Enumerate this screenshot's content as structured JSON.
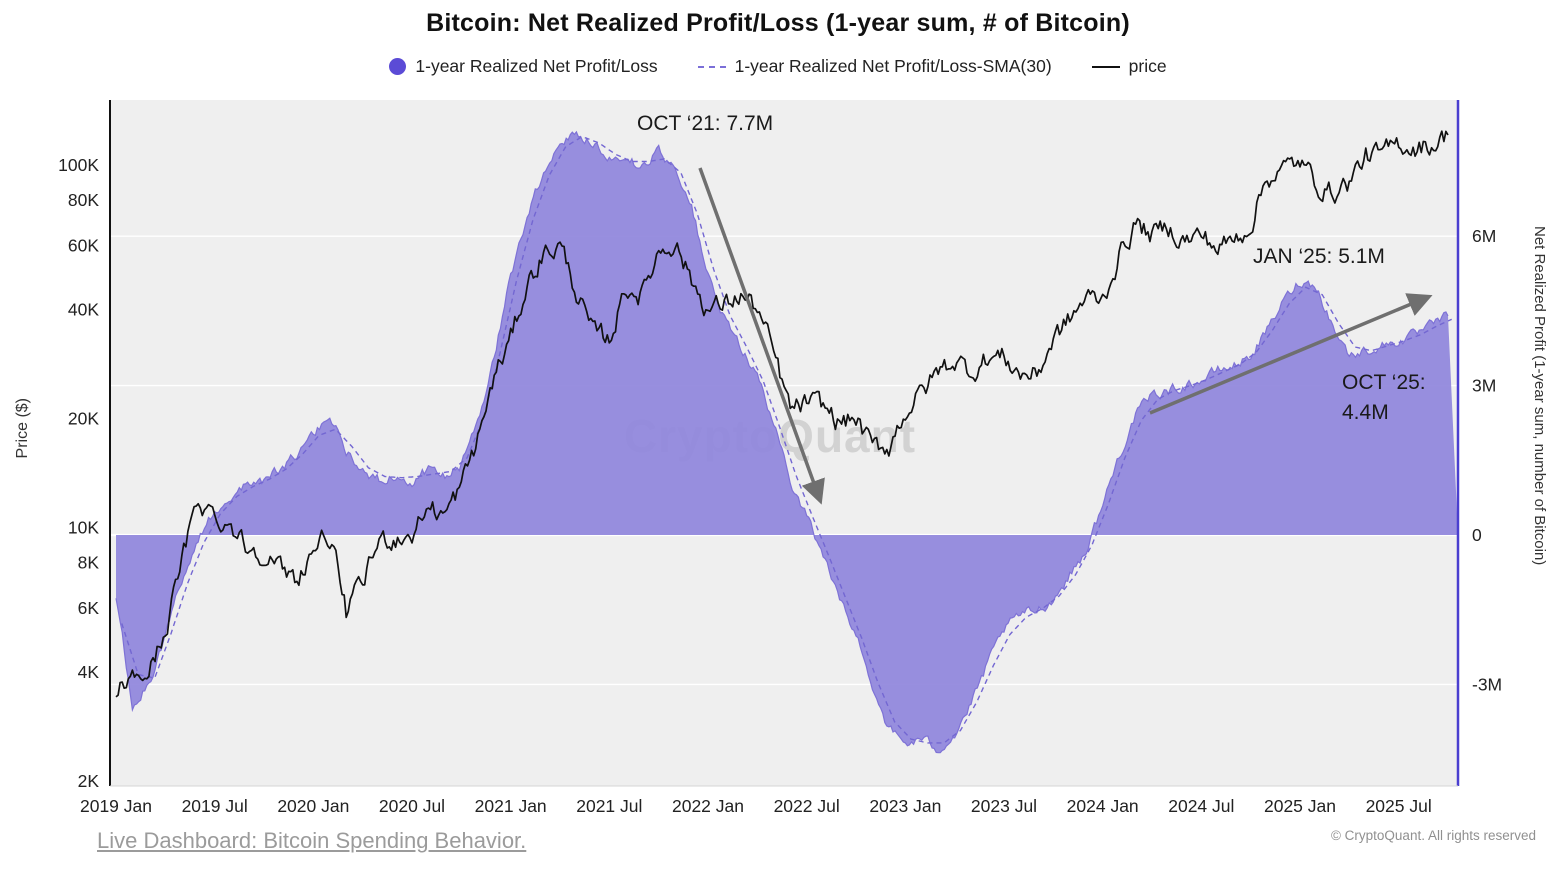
{
  "title": "Bitcoin: Net Realized Profit/Loss (1-year sum, # of Bitcoin)",
  "legend": {
    "items": [
      {
        "label": "1-year Realized Net Profit/Loss",
        "marker": "purple-dot"
      },
      {
        "label": "1-year Realized Net Profit/Loss-SMA(30)",
        "marker": "purple-dashed-line"
      },
      {
        "label": "price",
        "marker": "black-line"
      }
    ]
  },
  "annotations": {
    "oct21": "OCT ‘21: 7.7M",
    "jan25": "JAN ‘25: 5.1M",
    "oct25": "OCT ‘25: 4.4M"
  },
  "watermark": "CryptoQuant",
  "footer": {
    "link_label": "Live Dashboard: Bitcoin Spending Behavior.",
    "copyright": "© CryptoQuant. All rights reserved"
  },
  "colors": {
    "area": "#8f86dc",
    "area_edge": "#7e72d6",
    "sma": "#7367d2",
    "price": "#111111",
    "legend_dot": "#5b4bd6",
    "right_axis_spine": "#4a3fd0",
    "plot_bg": "#efefef",
    "annotation_arrow": "#6f6f6f"
  },
  "chart_data": {
    "type": "area",
    "title": "Bitcoin: Net Realized Profit/Loss (1-year sum, # of Bitcoin)",
    "x_start": "2019-01",
    "x_end": "2025-10",
    "x_interval": "monthly",
    "x_tick_labels": [
      "2019 Jan",
      "2019 Jul",
      "2020 Jan",
      "2020 Jul",
      "2021 Jan",
      "2021 Jul",
      "2022 Jan",
      "2022 Jul",
      "2023 Jan",
      "2023 Jul",
      "2024 Jan",
      "2024 Jul",
      "2025 Jan",
      "2025 Jul"
    ],
    "left_axis": {
      "label": "Price ($)",
      "scale": "log",
      "tick_labels": [
        "100K",
        "80K",
        "60K",
        "40K",
        "20K",
        "10K",
        "8K",
        "6K",
        "4K",
        "2K"
      ],
      "tick_values": [
        100000,
        80000,
        60000,
        40000,
        20000,
        10000,
        8000,
        6000,
        4000,
        2000
      ]
    },
    "right_axis": {
      "label": "Net Realized Profit (1-year sum, number of Bitcoin)",
      "scale": "linear",
      "unit": "million BTC",
      "tick_labels": [
        "6M",
        "3M",
        "0",
        "-3M"
      ],
      "tick_values": [
        6,
        3,
        0,
        -3
      ]
    },
    "series": [
      {
        "name": "1-year Realized Net Profit/Loss",
        "type": "area",
        "axis": "right",
        "unit": "million BTC",
        "values": [
          -1.2,
          -3.5,
          -3.0,
          -2.0,
          -0.9,
          -0.1,
          0.5,
          0.8,
          1.0,
          1.1,
          1.3,
          1.6,
          2.0,
          2.4,
          1.7,
          1.3,
          1.1,
          1.2,
          1.1,
          1.3,
          1.2,
          1.4,
          2.2,
          3.6,
          5.2,
          6.4,
          7.3,
          7.9,
          8.1,
          7.9,
          7.6,
          7.5,
          7.4,
          7.7,
          7.4,
          6.6,
          5.2,
          4.3,
          3.8,
          3.2,
          2.2,
          1.1,
          0.4,
          -0.4,
          -1.3,
          -2.0,
          -3.0,
          -3.9,
          -4.2,
          -4.1,
          -4.3,
          -4.0,
          -3.4,
          -2.6,
          -1.9,
          -1.6,
          -1.5,
          -1.3,
          -0.8,
          -0.3,
          0.6,
          1.6,
          2.4,
          2.8,
          2.9,
          3.0,
          3.1,
          3.3,
          3.4,
          3.6,
          4.1,
          4.7,
          5.1,
          5.0,
          4.2,
          3.6,
          3.7,
          3.8,
          3.9,
          4.0,
          4.2,
          4.4
        ]
      },
      {
        "name": "1-year Realized Net Profit/Loss-SMA(30)",
        "type": "dashed-line",
        "axis": "right",
        "unit": "million BTC",
        "derived": "30-period moving average of the area series"
      },
      {
        "name": "price",
        "type": "line",
        "axis": "left",
        "unit": "USD",
        "values": [
          3600,
          3800,
          4000,
          5200,
          8000,
          12000,
          10800,
          10200,
          8800,
          8600,
          7600,
          7200,
          8800,
          9600,
          5800,
          7000,
          9200,
          9400,
          9600,
          11500,
          10800,
          13000,
          17500,
          26000,
          33000,
          47000,
          57000,
          60000,
          45000,
          34000,
          33000,
          46000,
          44000,
          58000,
          62000,
          48000,
          40000,
          41000,
          44000,
          40000,
          30000,
          21000,
          22000,
          21500,
          19500,
          20000,
          16500,
          16800,
          21000,
          23500,
          27000,
          29000,
          27000,
          29500,
          29500,
          26500,
          26500,
          33000,
          37500,
          43000,
          42500,
          56000,
          69000,
          64000,
          67500,
          62000,
          64000,
          59000,
          62000,
          69000,
          93000,
          97000,
          102000,
          89000,
          84000,
          90000,
          106000,
          106000,
          115000,
          112000,
          114000,
          121000
        ]
      }
    ],
    "annotated_points": [
      {
        "label": "OCT ‘21: 7.7M",
        "x": "2021-10",
        "value_million_btc": 7.7
      },
      {
        "label": "JAN ‘25: 5.1M",
        "x": "2025-01",
        "value_million_btc": 5.1
      },
      {
        "label": "OCT ‘25: 4.4M",
        "x": "2025-10",
        "value_million_btc": 4.4
      }
    ]
  }
}
